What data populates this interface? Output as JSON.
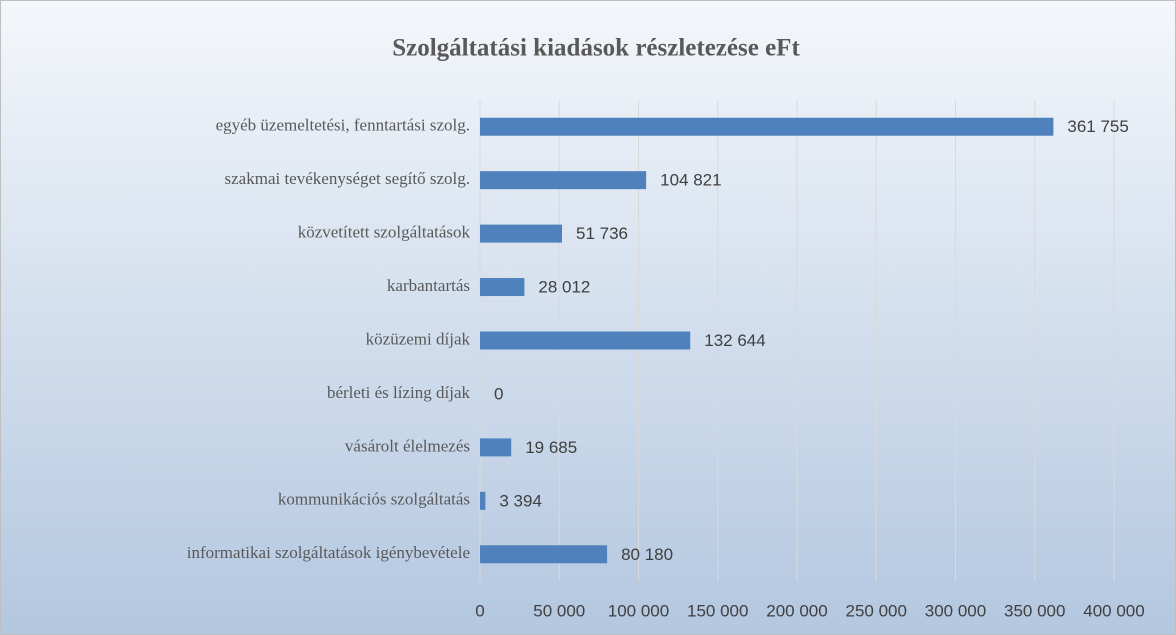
{
  "chart_data": {
    "type": "bar",
    "orientation": "horizontal",
    "title": "Szolgáltatási kiadások részletezése eFt",
    "categories": [
      "egyéb üzemeltetési, fenntartási szolg.",
      "szakmai tevékenységet segítő szolg.",
      "közvetített szolgáltatások",
      "karbantartás",
      "közüzemi díjak",
      "bérleti és lízing díjak",
      "vásárolt élelmezés",
      "kommunikációs szolgáltatás",
      "informatikai szolgáltatások igénybevétele"
    ],
    "values": [
      361755,
      104821,
      51736,
      28012,
      132644,
      0,
      19685,
      3394,
      80180
    ],
    "value_labels": [
      "361 755",
      "104 821",
      "51 736",
      "28 012",
      "132 644",
      "0",
      "19 685",
      "3 394",
      "80 180"
    ],
    "color": "#4f81bd",
    "xlim": [
      0,
      400000
    ],
    "xticks": [
      0,
      {
        "value": 50000,
        "label": "50 000"
      },
      {
        "value": 100000,
        "label": "100 000"
      },
      {
        "value": 150000,
        "label": "150 000"
      },
      {
        "value": 200000,
        "label": "200 000"
      },
      {
        "value": 250000,
        "label": "250 000"
      },
      {
        "value": 300000,
        "label": "300 000"
      },
      {
        "value": 350000,
        "label": "350 000"
      },
      {
        "value": 400000,
        "label": "400 000"
      }
    ],
    "grid": true
  }
}
